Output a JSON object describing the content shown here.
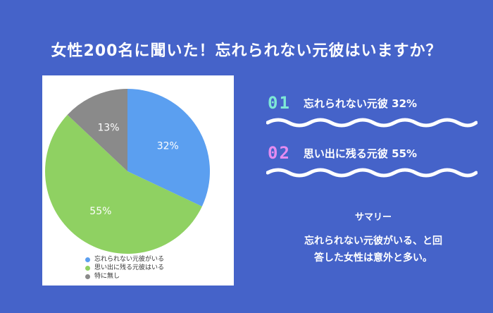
{
  "title": "女性200名に聞いた！忘れられない元彼はいますか？",
  "chart_data": {
    "type": "pie",
    "slices": [
      {
        "label": "忘れられない元彼がいる",
        "value": 32,
        "display": "32%",
        "color": "#5b9ff0"
      },
      {
        "label": "思い出に残る元彼はいる",
        "value": 55,
        "display": "55%",
        "color": "#8fd162"
      },
      {
        "label": "特に無し",
        "value": 13,
        "display": "13%",
        "color": "#8a8a8a"
      }
    ],
    "legend_placement": "bottom"
  },
  "items": [
    {
      "number": "01",
      "label": "忘れられない元彼 32%",
      "number_color": "#7ee8d6"
    },
    {
      "number": "02",
      "label": "思い出に残る元彼 55%",
      "number_color": "#e58cf0"
    }
  ],
  "summary": {
    "title": "サマリー",
    "line1": "忘れられない元彼がいる、と回",
    "line2": "答した女性は意外と多い。"
  }
}
